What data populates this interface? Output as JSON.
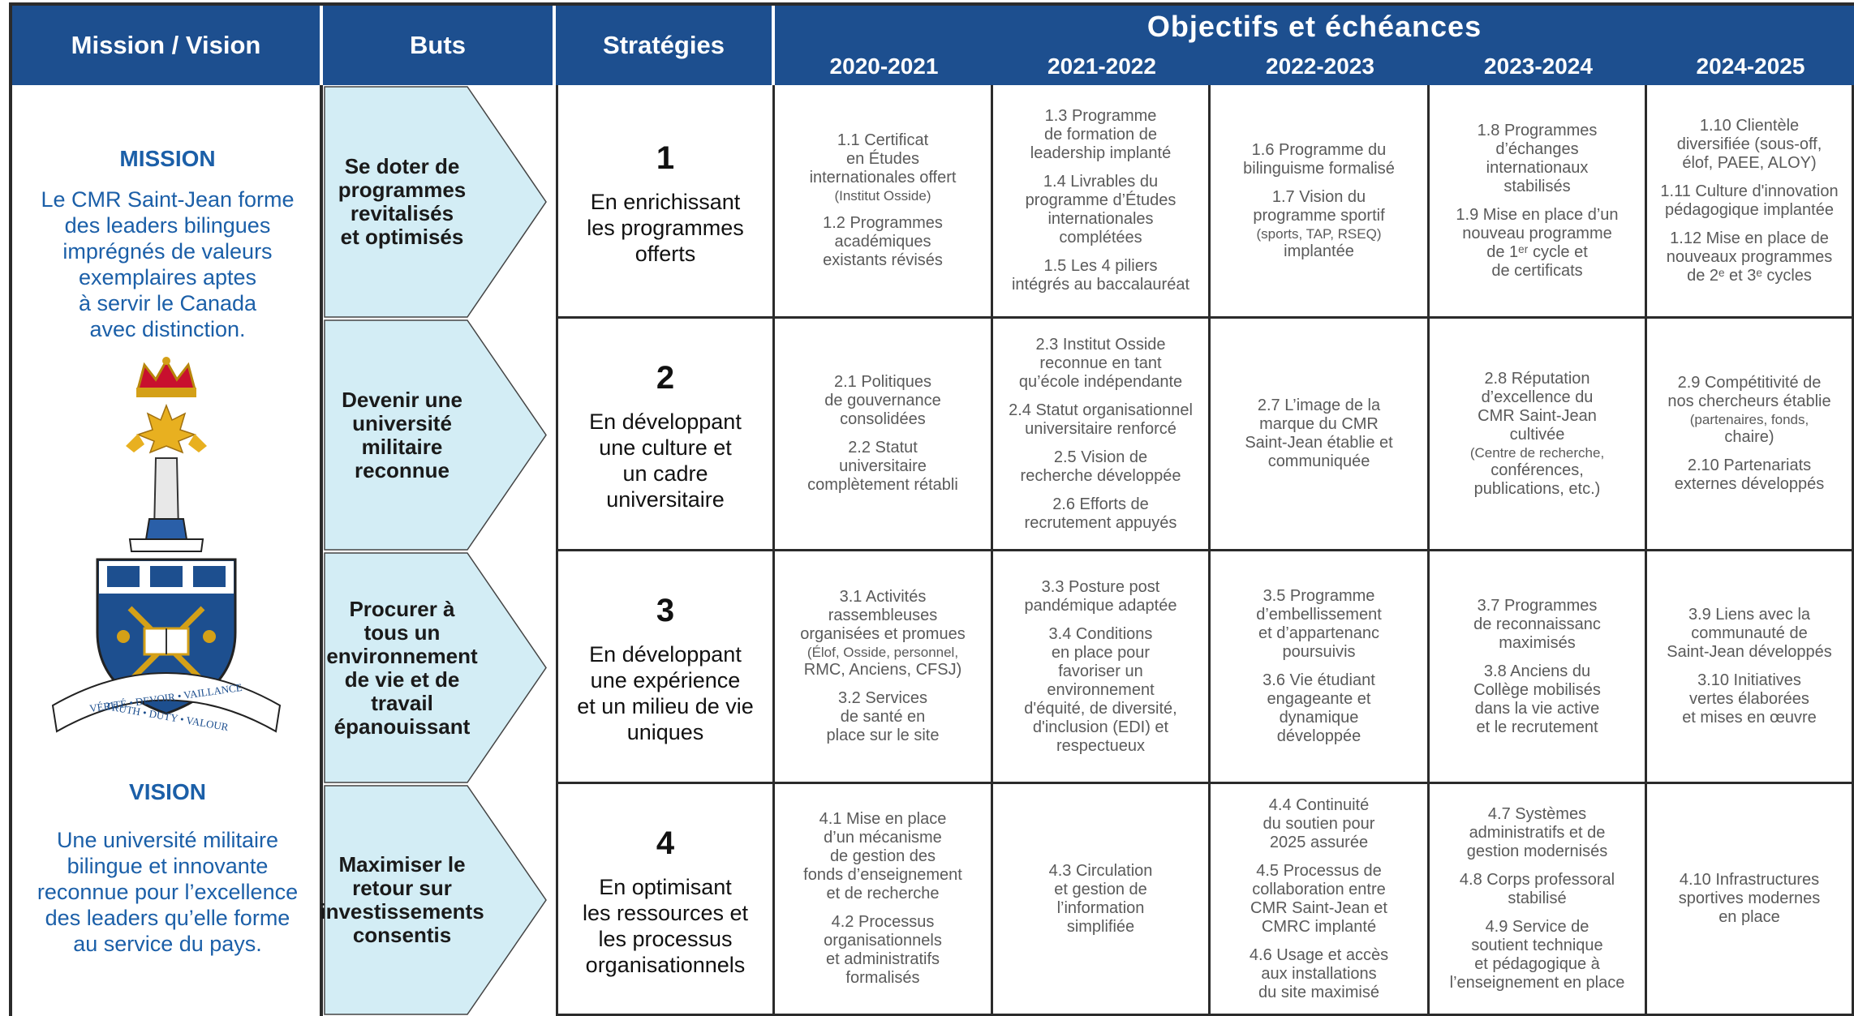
{
  "header": {
    "mission_vision": "Mission / Vision",
    "buts": "Buts",
    "strategies": "Stratégies",
    "objectifs": "Objectifs et échéances",
    "years": [
      "2020-2021",
      "2021-2022",
      "2022-2023",
      "2023-2024",
      "2024-2025"
    ]
  },
  "mission": {
    "title": "MISSION",
    "lines": [
      "Le CMR Saint-Jean forme",
      "des leaders bilingues",
      "imprégnés de valeurs",
      "exemplaires aptes",
      "à servir le Canada",
      "avec distinction."
    ]
  },
  "vision": {
    "title": "VISION",
    "lines": [
      "Une université militaire",
      "bilingue et innovante",
      "reconnue pour l’excellence",
      "des leaders qu’elle forme",
      "au service du pays."
    ]
  },
  "crest": {
    "motto": [
      "VÉRITÉ • DEVOIR • VAILLANCE",
      "TRUTH • DUTY • VALOUR"
    ]
  },
  "rows": [
    {
      "but": [
        "Se doter de",
        "programmes",
        "revitalisés",
        "et optimisés"
      ],
      "number": "1",
      "strategy": [
        "En enrichissant",
        "les programmes",
        "offerts"
      ],
      "cells": [
        [
          [
            "1.1 Certificat",
            "en Études",
            "internationales offert",
            "(Institut Osside)"
          ],
          [
            "1.2 Programmes",
            "académiques",
            "existants révisés"
          ]
        ],
        [
          [
            "1.3 Programme",
            "de formation de",
            "leadership implanté"
          ],
          [
            "1.4 Livrables du",
            "programme d’Études",
            "internationales",
            "complétées"
          ],
          [
            "1.5 Les 4 piliers",
            "intégrés au baccalauréat"
          ]
        ],
        [
          [
            "1.6  Programme du",
            "bilinguisme formalisé"
          ],
          [
            "1.7 Vision du",
            "programme sportif",
            "(sports, TAP, RSEQ)",
            "implantée"
          ]
        ],
        [
          [
            "1.8 Programmes",
            "d’échanges",
            "internationaux",
            "stabilisés"
          ],
          [
            "1.9 Mise en place d’un",
            "nouveau programme",
            "de 1ᵉʳ cycle et",
            "de certificats"
          ]
        ],
        [
          [
            "1.10 Clientèle",
            "diversifiée (sous-off,",
            "élof, PAEE, ALOY)"
          ],
          [
            "1.11 Culture d'innovation",
            "pédagogique implantée"
          ],
          [
            "1.12 Mise en place de",
            "nouveaux programmes",
            "de 2ᵉ et 3ᵉ cycles"
          ]
        ]
      ]
    },
    {
      "but": [
        "Devenir une",
        "université",
        "militaire",
        "reconnue"
      ],
      "number": "2",
      "strategy": [
        "En développant",
        "une culture et",
        "un cadre",
        "universitaire"
      ],
      "cells": [
        [
          [
            "2.1 Politiques",
            "de gouvernance",
            "consolidées"
          ],
          [
            "2.2 Statut",
            "universitaire",
            "complètement rétabli"
          ]
        ],
        [
          [
            "2.3 Institut Osside",
            "reconnue en tant",
            "qu’école indépendante"
          ],
          [
            "2.4 Statut organisationnel",
            "universitaire renforcé"
          ],
          [
            "2.5 Vision de",
            "recherche développée"
          ],
          [
            "2.6 Efforts de",
            "recrutement appuyés"
          ]
        ],
        [
          [
            "2.7 L’image de la",
            "marque du CMR",
            "Saint-Jean établie et",
            "communiquée"
          ]
        ],
        [
          [
            "2.8 Réputation",
            "d’excellence du",
            "CMR Saint-Jean",
            "cultivée",
            "(Centre de recherche,",
            "conférences,",
            "publications, etc.)"
          ]
        ],
        [
          [
            "2.9 Compétitivité de",
            "nos chercheurs établie",
            "(partenaires, fonds,",
            "chaire)"
          ],
          [
            "2.10 Partenariats",
            "externes développés"
          ]
        ]
      ]
    },
    {
      "but": [
        "Procurer à",
        "tous un",
        "environnement",
        "de vie et de",
        "travail",
        "épanouissant"
      ],
      "number": "3",
      "strategy": [
        "En développant",
        "une expérience",
        "et un milieu de vie",
        "uniques"
      ],
      "cells": [
        [
          [
            "3.1 Activités",
            "rassembleuses",
            "organisées et promues",
            "(Élof, Osside, personnel,",
            "RMC, Anciens, CFSJ)"
          ],
          [
            "3.2 Services",
            "de santé en",
            "place sur le site"
          ]
        ],
        [
          [
            "3.3 Posture post",
            "pandémique adaptée"
          ],
          [
            "3.4 Conditions",
            "en place pour",
            "favoriser un",
            "environnement",
            "d'équité, de diversité,",
            "d'inclusion (EDI) et",
            "respectueux"
          ]
        ],
        [
          [
            "3.5 Programme",
            "d’embellissement",
            "et d’appartenanc",
            "poursuivis"
          ],
          [
            "3.6 Vie étudiant",
            "engageante et",
            "dynamique",
            "développée"
          ]
        ],
        [
          [
            "3.7 Programmes",
            "de reconnaissanc",
            "maximisés"
          ],
          [
            "3.8 Anciens du",
            "Collège mobilisés",
            "dans la vie active",
            "et le recrutement"
          ]
        ],
        [
          [
            "3.9 Liens avec la",
            "communauté de",
            "Saint-Jean développés"
          ],
          [
            "3.10 Initiatives",
            "vertes élaborées",
            "et mises en œuvre"
          ]
        ]
      ]
    },
    {
      "but": [
        "Maximiser le",
        "retour sur",
        "investissements",
        "consentis"
      ],
      "number": "4",
      "strategy": [
        "En optimisant",
        "les ressources et",
        "les processus",
        "organisationnels"
      ],
      "cells": [
        [
          [
            "4.1 Mise en place",
            "d’un mécanisme",
            "de gestion des",
            "fonds d’enseignement",
            "et de recherche"
          ],
          [
            "4.2 Processus",
            "organisationnels",
            "et administratifs",
            "formalisés"
          ]
        ],
        [
          [
            "4.3 Circulation",
            "et gestion de",
            "l’information",
            "simplifiée"
          ]
        ],
        [
          [
            "4.4 Continuité",
            "du soutien pour",
            "2025 assurée"
          ],
          [
            "4.5 Processus de",
            "collaboration entre",
            "CMR Saint-Jean et",
            "CMRC implanté"
          ],
          [
            "4.6  Usage et accès",
            "aux installations",
            "du site maximisé"
          ]
        ],
        [
          [
            "4.7 Systèmes",
            "administratifs et de",
            "gestion modernisés"
          ],
          [
            "4.8 Corps professoral",
            "stabilisé"
          ],
          [
            "4.9  Service de",
            "soutient technique",
            "et pédagogique à",
            "l’enseignement en place"
          ]
        ],
        [
          [
            "4.10 Infrastructures",
            "sportives modernes",
            "en place"
          ]
        ]
      ]
    }
  ]
}
